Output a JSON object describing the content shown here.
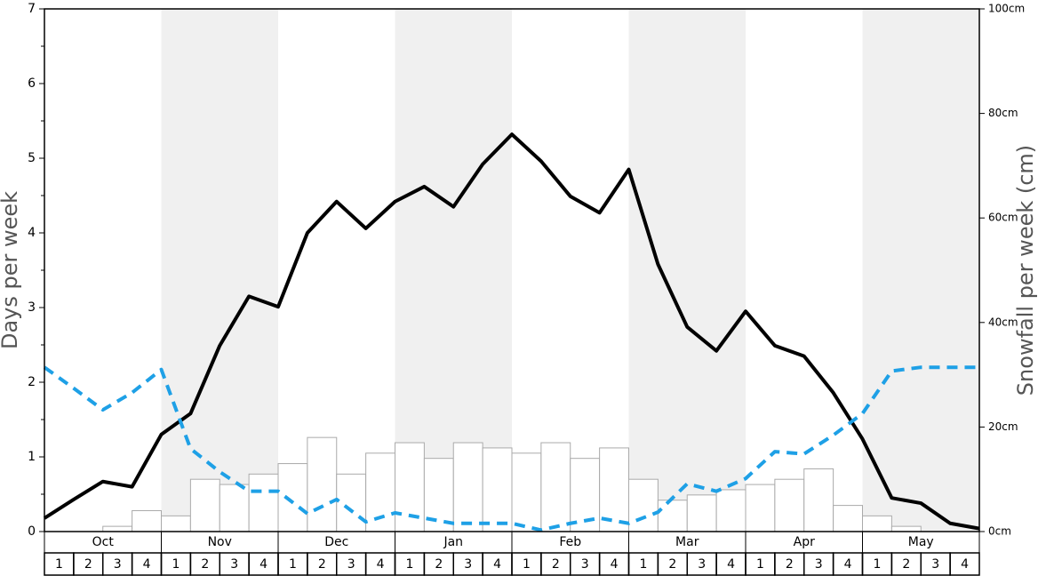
{
  "chart_data": {
    "type": "bar-line",
    "y_label": "Days per week",
    "y2_label": "Snowfall per week (cm)",
    "months": [
      "Oct",
      "Nov",
      "Dec",
      "Jan",
      "Feb",
      "Mar",
      "Apr",
      "May"
    ],
    "categories": [
      "1",
      "2",
      "3",
      "4",
      "1",
      "2",
      "3",
      "4",
      "1",
      "2",
      "3",
      "4",
      "1",
      "2",
      "3",
      "4",
      "1",
      "2",
      "3",
      "4",
      "1",
      "2",
      "3",
      "4",
      "1",
      "2",
      "3",
      "4",
      "1",
      "2",
      "3",
      "4"
    ],
    "band_shading": "#f0f0f0",
    "ylim": [
      0,
      7
    ],
    "yticks": [
      0,
      1,
      2,
      3,
      4,
      5,
      6,
      7
    ],
    "yminorticks": [
      0.5,
      1.5,
      2.5,
      3.5,
      4.5,
      5.5,
      6.5
    ],
    "y2lim": [
      0,
      100
    ],
    "y2ticks": [
      {
        "value": 0,
        "label": "0cm"
      },
      {
        "value": 20,
        "label": "20cm"
      },
      {
        "value": 40,
        "label": "40cm"
      },
      {
        "value": 60,
        "label": "60cm"
      },
      {
        "value": 80,
        "label": "80cm"
      },
      {
        "value": 100,
        "label": "100cm"
      }
    ],
    "xlim": [
      0,
      32
    ],
    "bars": {
      "axis": "y2",
      "color": "#ffffff",
      "edge_color": "#aaaaaa",
      "values": [
        0,
        0,
        1,
        4,
        3,
        10,
        9,
        11,
        13,
        18,
        11,
        15,
        17,
        14,
        17,
        16,
        15,
        17,
        14,
        16,
        10,
        6,
        7,
        8,
        9,
        10,
        12,
        5,
        3,
        1,
        0,
        0
      ]
    },
    "lines": [
      {
        "color": "#000000",
        "dashed": false,
        "x": [
          0,
          1,
          2,
          3,
          4,
          5,
          6,
          7,
          8,
          9,
          10,
          11,
          12,
          13,
          14,
          15,
          16,
          17,
          18,
          19,
          20,
          21,
          22,
          23,
          24,
          25,
          26,
          27,
          28,
          29,
          30,
          31,
          32
        ],
        "values": [
          0.18,
          0.43,
          0.67,
          0.6,
          1.3,
          1.58,
          2.49,
          3.15,
          3.01,
          4.0,
          4.42,
          4.06,
          4.42,
          4.62,
          4.35,
          4.92,
          5.32,
          4.96,
          4.49,
          4.27,
          4.85,
          3.58,
          2.74,
          2.42,
          2.95,
          2.49,
          2.35,
          1.86,
          1.24,
          0.45,
          0.38,
          0.11,
          0.04
        ]
      },
      {
        "color": "#1ea0e6",
        "dashed": true,
        "x": [
          0,
          1,
          2,
          3,
          4,
          5,
          6,
          7,
          8,
          9,
          10,
          11,
          12,
          13,
          14,
          15,
          16,
          17,
          18,
          19,
          20,
          21,
          22,
          23,
          24,
          25,
          26,
          27,
          28,
          29,
          30,
          31,
          32
        ],
        "values": [
          2.2,
          1.92,
          1.63,
          1.86,
          2.17,
          1.11,
          0.8,
          0.54,
          0.54,
          0.24,
          0.43,
          0.13,
          0.25,
          0.18,
          0.11,
          0.11,
          0.11,
          0.02,
          0.11,
          0.18,
          0.11,
          0.26,
          0.64,
          0.54,
          0.71,
          1.07,
          1.04,
          1.29,
          1.58,
          2.15,
          2.2,
          2.2,
          2.2
        ]
      }
    ]
  }
}
